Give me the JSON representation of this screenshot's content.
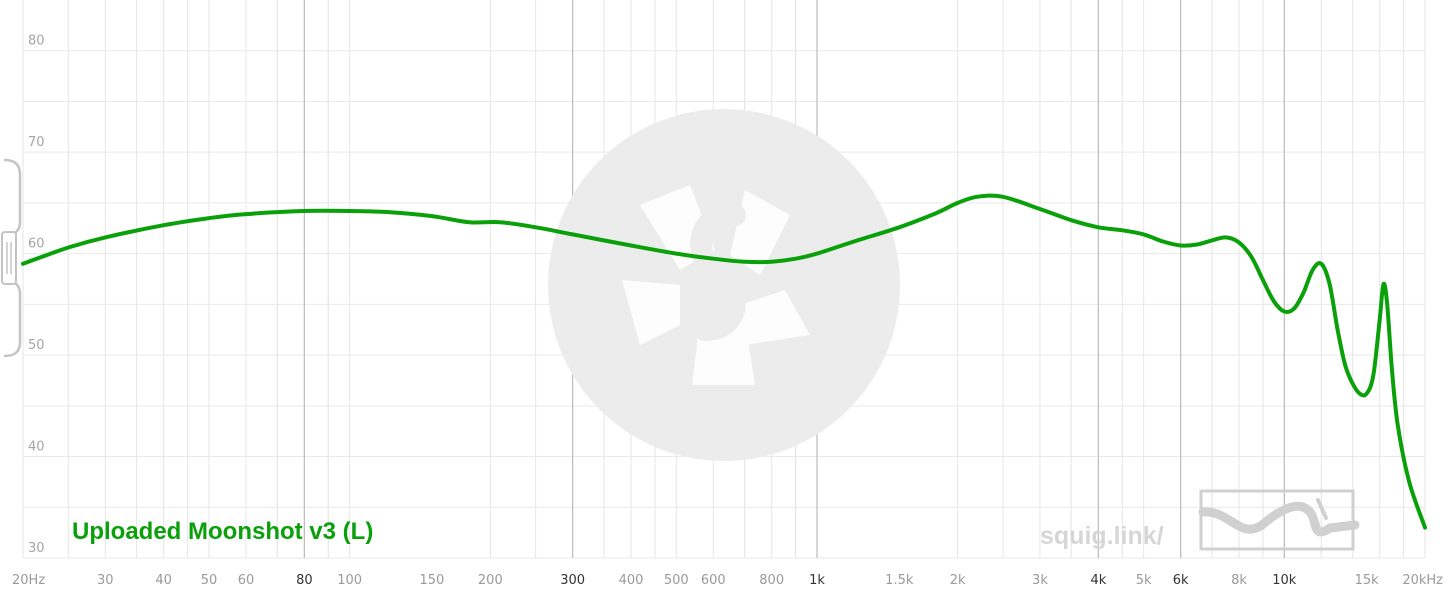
{
  "chart_data": {
    "type": "line",
    "x_scale": "log",
    "xlim": [
      20,
      20000
    ],
    "ylim": [
      30,
      85
    ],
    "grid": true,
    "y_ticks": [
      30,
      40,
      50,
      60,
      70,
      80
    ],
    "y_tick_labels": [
      "30",
      "40",
      "50",
      "60",
      "70",
      "80"
    ],
    "x_ticks": [
      {
        "value": 20,
        "label": "20Hz",
        "major": false
      },
      {
        "value": 30,
        "label": "30",
        "major": false
      },
      {
        "value": 40,
        "label": "40",
        "major": false
      },
      {
        "value": 50,
        "label": "50",
        "major": false
      },
      {
        "value": 60,
        "label": "60",
        "major": false
      },
      {
        "value": 80,
        "label": "80",
        "major": true
      },
      {
        "value": 100,
        "label": "100",
        "major": false
      },
      {
        "value": 150,
        "label": "150",
        "major": false
      },
      {
        "value": 200,
        "label": "200",
        "major": false
      },
      {
        "value": 300,
        "label": "300",
        "major": true
      },
      {
        "value": 400,
        "label": "400",
        "major": false
      },
      {
        "value": 500,
        "label": "500",
        "major": false
      },
      {
        "value": 600,
        "label": "600",
        "major": false
      },
      {
        "value": 800,
        "label": "800",
        "major": false
      },
      {
        "value": 1000,
        "label": "1k",
        "major": true
      },
      {
        "value": 1500,
        "label": "1.5k",
        "major": false
      },
      {
        "value": 2000,
        "label": "2k",
        "major": false
      },
      {
        "value": 3000,
        "label": "3k",
        "major": false
      },
      {
        "value": 4000,
        "label": "4k",
        "major": true
      },
      {
        "value": 5000,
        "label": "5k",
        "major": false
      },
      {
        "value": 6000,
        "label": "6k",
        "major": true
      },
      {
        "value": 8000,
        "label": "8k",
        "major": false
      },
      {
        "value": 10000,
        "label": "10k",
        "major": true
      },
      {
        "value": 15000,
        "label": "15k",
        "major": false
      },
      {
        "value": 20000,
        "label": "20kHz",
        "major": false
      }
    ],
    "series": [
      {
        "name": "Uploaded Moonshot v3 (L)",
        "color": "#0aa00a",
        "points": [
          [
            20,
            59.0
          ],
          [
            25,
            60.6
          ],
          [
            30,
            61.6
          ],
          [
            40,
            62.8
          ],
          [
            50,
            63.5
          ],
          [
            60,
            63.9
          ],
          [
            80,
            64.2
          ],
          [
            100,
            64.2
          ],
          [
            120,
            64.1
          ],
          [
            150,
            63.7
          ],
          [
            180,
            63.1
          ],
          [
            210,
            63.1
          ],
          [
            250,
            62.6
          ],
          [
            300,
            61.9
          ],
          [
            400,
            60.8
          ],
          [
            500,
            60.0
          ],
          [
            600,
            59.5
          ],
          [
            700,
            59.2
          ],
          [
            800,
            59.2
          ],
          [
            900,
            59.5
          ],
          [
            1000,
            60.0
          ],
          [
            1200,
            61.2
          ],
          [
            1500,
            62.6
          ],
          [
            1800,
            64.0
          ],
          [
            2000,
            65.0
          ],
          [
            2200,
            65.6
          ],
          [
            2500,
            65.6
          ],
          [
            3000,
            64.4
          ],
          [
            3500,
            63.3
          ],
          [
            4000,
            62.6
          ],
          [
            4500,
            62.3
          ],
          [
            5000,
            61.9
          ],
          [
            5500,
            61.2
          ],
          [
            6000,
            60.8
          ],
          [
            6500,
            60.9
          ],
          [
            7000,
            61.3
          ],
          [
            7500,
            61.6
          ],
          [
            8000,
            61.1
          ],
          [
            8500,
            59.7
          ],
          [
            9000,
            57.4
          ],
          [
            9500,
            55.3
          ],
          [
            10000,
            54.3
          ],
          [
            10500,
            54.6
          ],
          [
            11000,
            56.2
          ],
          [
            11500,
            58.4
          ],
          [
            12000,
            59.0
          ],
          [
            12500,
            57.0
          ],
          [
            13000,
            52.5
          ],
          [
            13500,
            49.0
          ],
          [
            14000,
            47.2
          ],
          [
            14500,
            46.2
          ],
          [
            15000,
            46.2
          ],
          [
            15500,
            48.0
          ],
          [
            16000,
            53.5
          ],
          [
            16300,
            57.0
          ],
          [
            16600,
            55.0
          ],
          [
            17000,
            48.5
          ],
          [
            17500,
            43.0
          ],
          [
            18500,
            37.5
          ],
          [
            20000,
            33.0
          ]
        ]
      }
    ],
    "annotations": [
      "squig.link/"
    ]
  },
  "labels": {
    "series_name": "Uploaded Moonshot v3 (L)",
    "watermark": "squig.link/"
  }
}
